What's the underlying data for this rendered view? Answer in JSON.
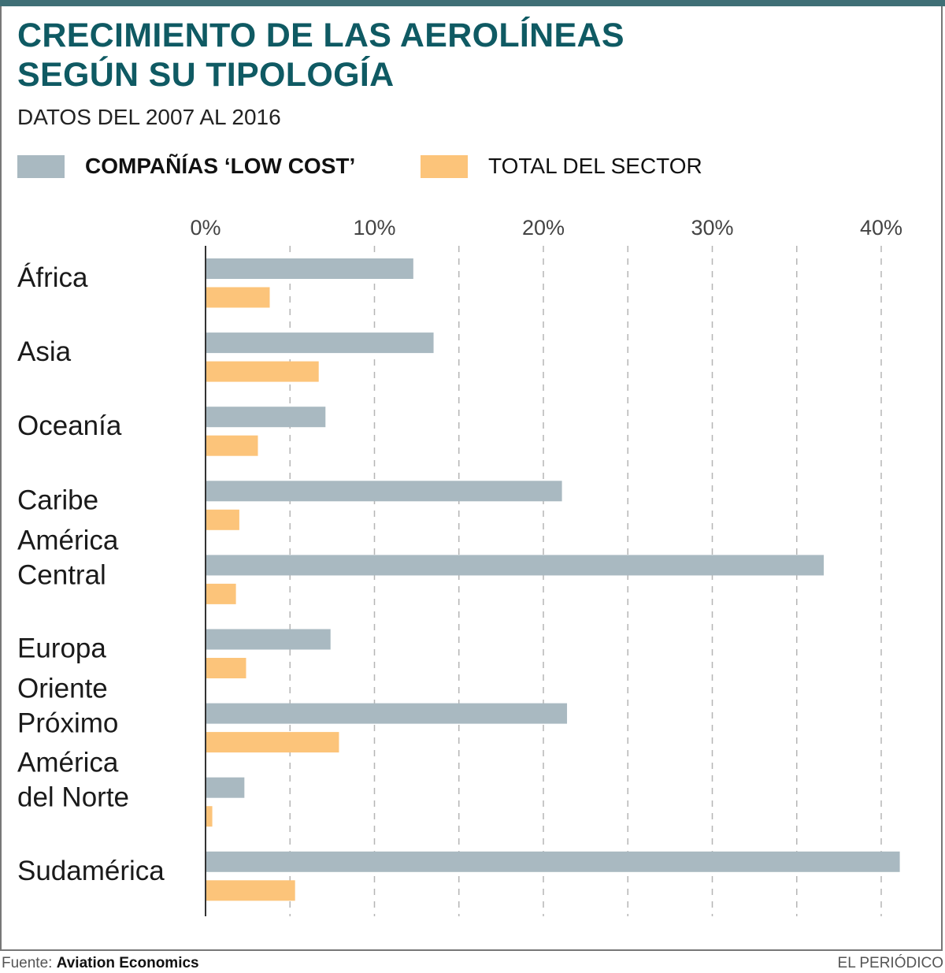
{
  "chart_data": {
    "type": "bar",
    "orientation": "horizontal",
    "title": "CRECIMIENTO DE LAS AEROLÍNEAS\nSEGÚN SU TIPOLOGÍA",
    "subtitle": "DATOS DEL 2007 AL 2016",
    "categories": [
      "África",
      "Asia",
      "Oceanía",
      "Caribe",
      "América\nCentral",
      "Europa",
      "Oriente\nPróximo",
      "América\ndel Norte",
      "Sudamérica"
    ],
    "series": [
      {
        "name": "COMPAÑÍAS ‘LOW COST’",
        "color": "#a9b9c1",
        "values": [
          12.3,
          13.5,
          7.1,
          21.1,
          36.6,
          7.4,
          21.4,
          2.3,
          41.1
        ]
      },
      {
        "name": "TOTAL DEL SECTOR",
        "color": "#fcc47a",
        "values": [
          3.8,
          6.7,
          3.1,
          2.0,
          1.8,
          2.4,
          7.9,
          0.4,
          5.3
        ]
      }
    ],
    "xlim": [
      0,
      42
    ],
    "xticks": [
      0,
      10,
      20,
      30,
      40
    ],
    "xtick_labels": [
      "0%",
      "10%",
      "20%",
      "30%",
      "40%"
    ],
    "grid": "vertical dashed every 5%",
    "legend": "top",
    "title_color": "#0f5a63"
  },
  "footer": {
    "source_label": "Fuente:",
    "source": "Aviation Economics",
    "credit": "EL PERIÓDICO"
  }
}
